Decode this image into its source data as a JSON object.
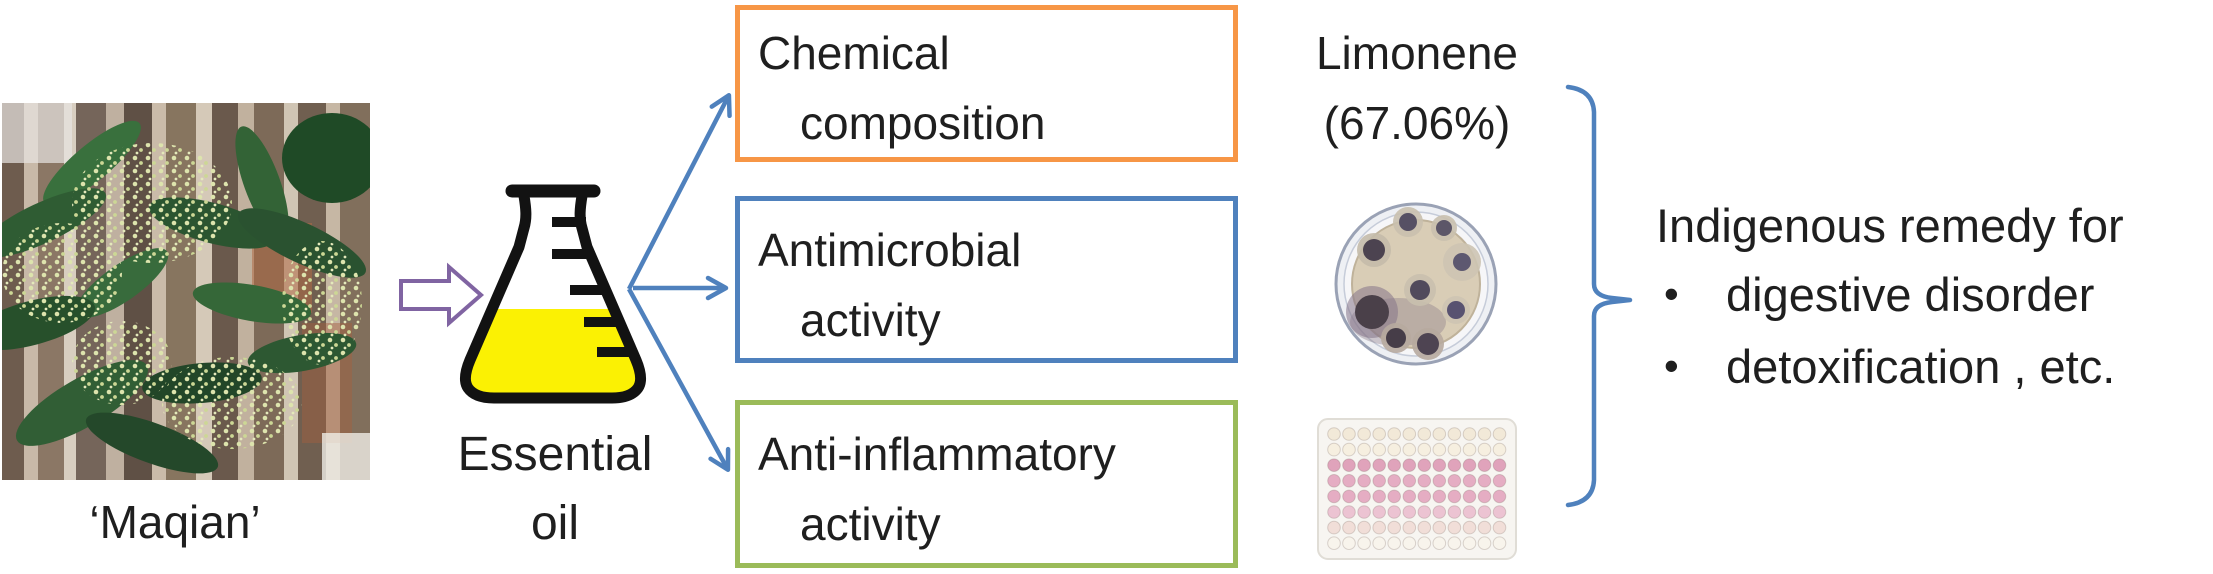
{
  "plant": {
    "label": "‘Maqian’"
  },
  "flask": {
    "label_line1": "Essential",
    "label_line2": "oil"
  },
  "boxes": [
    {
      "line1": "Chemical",
      "line2": "composition",
      "border_color": "#F79646"
    },
    {
      "line1": "Antimicrobial",
      "line2": "activity",
      "border_color": "#4F81BD"
    },
    {
      "line1": "Anti-inflammatory",
      "line2": "activity",
      "border_color": "#9BBB59"
    }
  ],
  "limonene": {
    "line1": "Limonene",
    "line2": "(67.06%)"
  },
  "remedy": {
    "heading": "Indigenous remedy for",
    "bullets": [
      "digestive disorder",
      "detoxification , etc."
    ]
  },
  "icons": {
    "bullet": "•"
  },
  "colors": {
    "orange": "#F79646",
    "blue": "#4F81BD",
    "green": "#9BBB59",
    "purple": "#8064A2",
    "flask_yellow": "#FBF103",
    "text": "#1f1f1f"
  },
  "microplate": {
    "rows": 8,
    "cols": 12,
    "row_colors": [
      "#f2e9d8",
      "#f6efe0",
      "#e0a3bb",
      "#e5adc3",
      "#e5adc3",
      "#ecc3d2",
      "#f1ded8",
      "#f8f4ec"
    ]
  }
}
